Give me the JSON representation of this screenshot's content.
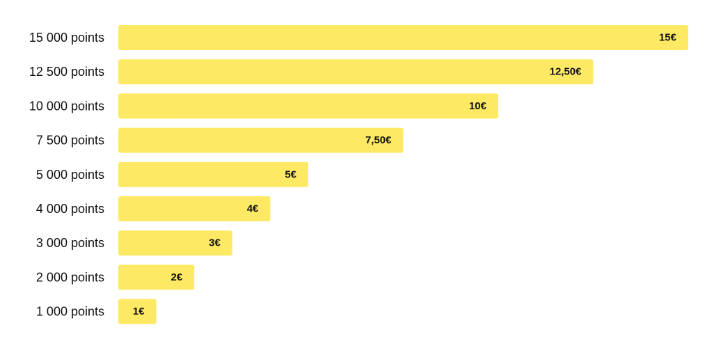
{
  "chart_data": {
    "type": "bar",
    "orientation": "horizontal",
    "categories": [
      "15 000 points",
      "12 500 points",
      "10 000 points",
      "7 500 points",
      "5 000 points",
      "4 000 points",
      "3 000 points",
      "2 000 points",
      "1 000 points"
    ],
    "values": [
      15,
      12.5,
      10,
      7.5,
      5,
      4,
      3,
      2,
      1
    ],
    "data_labels": [
      "15€",
      "12,50€",
      "10€",
      "7,50€",
      "5€",
      "4€",
      "3€",
      "2€",
      "1€"
    ],
    "title": "",
    "xlabel": "",
    "ylabel": "",
    "xlim": [
      0,
      15
    ],
    "grid": false,
    "legend": "none",
    "bar_color": "#FDE964"
  }
}
